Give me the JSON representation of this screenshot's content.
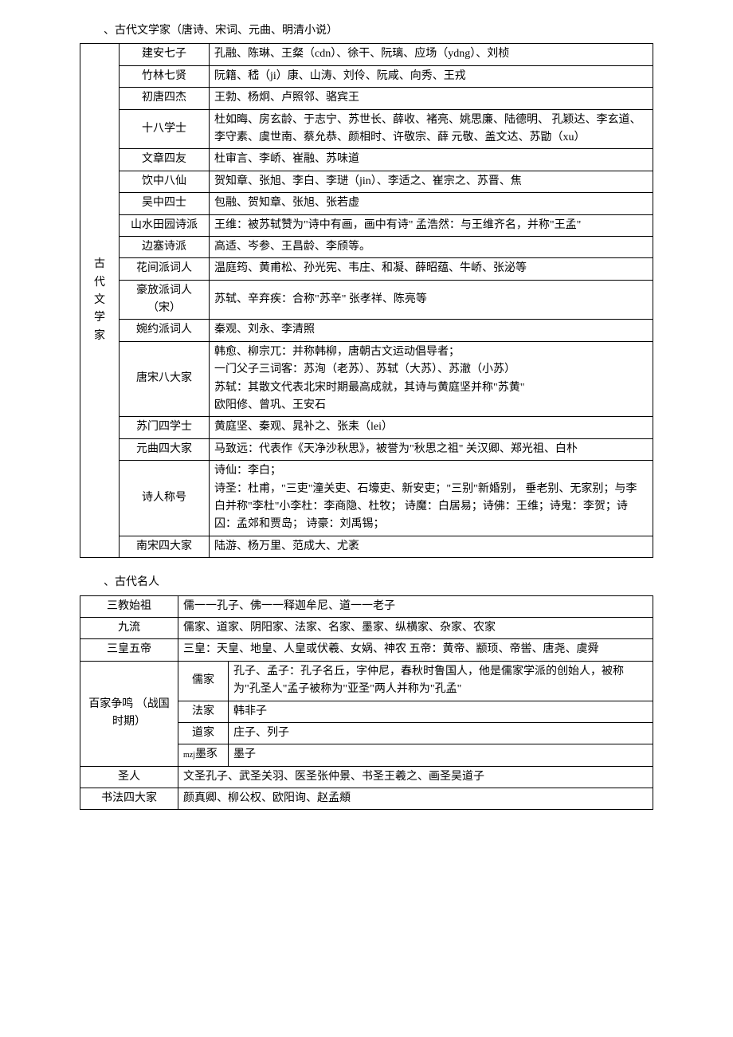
{
  "section1": {
    "title": "、古代文学家（唐诗、宋词、元曲、明清小说）",
    "rowspan_label": "古 代 文 学 家",
    "rows": [
      {
        "label": "建安七子",
        "content": "孔融、陈琳、王粲（cdn）、徐干、阮璃、应场（ydng）、刘桢"
      },
      {
        "label": "竹林七贤",
        "content": "阮籍、嵇（ji）康、山涛、刘伶、阮咸、向秀、王戎"
      },
      {
        "label": "初唐四杰",
        "content": "王勃、杨炯、卢照邻、骆宾王"
      },
      {
        "label": "十八学士",
        "content": "杜如晦、房玄龄、于志宁、苏世长、薛收、褚亮、姚思廉、陆德明、  孔颖达、李玄道、李守素、虞世南、蔡允恭、颜相时、许敬宗、薛 元敬、盖文达、苏勖（xu）"
      },
      {
        "label": "文章四友",
        "content": "杜审言、李峤、崔融、苏味道"
      },
      {
        "label": "饮中八仙",
        "content": "贺知章、张旭、李白、李琎（jin）、李适之、崔宗之、苏晋、焦"
      },
      {
        "label": "吴中四士",
        "content": "包融、贺知章、张旭、张若虚"
      },
      {
        "label": "山水田园诗派",
        "content": "王维：被苏轼赞为\"诗中有画，画中有诗\"  孟浩然：与王维齐名，并称\"王孟\""
      },
      {
        "label": "边塞诗派",
        "content": "高适、岑参、王昌龄、李颀等。"
      },
      {
        "label": "花间派词人",
        "content": "温庭筠、黄甫松、孙光宪、韦庄、和凝、薛昭蕴、牛峤、张泌等"
      },
      {
        "label": "豪放派词人（宋）",
        "content": "苏轼、辛弃疾：合称\"苏辛\"  张孝祥、陈亮等"
      },
      {
        "label": "婉约派词人",
        "content": "秦观、刘永、李清照"
      },
      {
        "label": "唐宋八大家",
        "content": "韩愈、柳宗兀：并称韩柳，唐朝古文运动倡导者；\n一门父子三词客：苏洵（老苏）、苏轼（大苏）、苏澈（小苏）\n苏轼：其散文代表北宋时期最高成就，其诗与黄庭坚并称\"苏黄\"\n欧阳修、曾巩、王安石"
      },
      {
        "label": "苏门四学士",
        "content": "黄庭坚、秦观、晁补之、张耒（lei）"
      },
      {
        "label": "元曲四大家",
        "content": "马致远：代表作《天净沙秋思》，被誉为\"秋思之祖\"  关汉卿、郑光祖、白朴"
      },
      {
        "label": "诗人称号",
        "content": "诗仙：李白；\n诗圣：杜甫，\"三吏\"潼关吏、石壕吏、新安吏；\"三别\"新婚别，  垂老别、无家别；与李白并称\"李杜\"小李杜：李商隐、杜牧；  诗魔：白居易；诗佛：王维；诗鬼：李贺；诗囚：孟郊和贾岛；  诗豪：刘禹锡；"
      },
      {
        "label": "南宋四大家",
        "content": "陆游、杨万里、范成大、尤袤"
      }
    ]
  },
  "section2": {
    "title": "、古代名人",
    "rows_simple": [
      {
        "label": "三教始祖",
        "content": "儒一一孔子、佛一一释迦牟尼、道一一老子"
      },
      {
        "label": "九流",
        "content": "儒家、道家、阴阳家、法家、名家、墨家、纵横家、杂家、农家"
      },
      {
        "label": "三皇五帝",
        "content": "三皇：天皇、地皇、人皇或伏羲、女娲、神农 五帝：黄帝、颛顼、帝喾、唐尧、虞舜"
      }
    ],
    "baijia": {
      "label": "百家争鸣  （战国时期）",
      "subrows": [
        {
          "sublabel": "儒家",
          "content": "孔子、孟子：孔子名丘，字仲尼，春秋时鲁国人，他是儒家学派的创始人，被称为\"孔圣人\"孟子被称为\"亚圣\"两人并称为\"孔孟\""
        },
        {
          "sublabel": "法家",
          "content": "韩非子"
        },
        {
          "sublabel": "道家",
          "content": "庄子、列子"
        },
        {
          "sublabel_prefix": "mzj",
          "sublabel": "墨豕",
          "content": "墨子"
        }
      ]
    },
    "rows_after": [
      {
        "label": "圣人",
        "content": "文圣孔子、武圣关羽、医圣张仲景、书圣王羲之、画圣吴道子"
      },
      {
        "label": "书法四大家",
        "content": "颜真卿、柳公权、欧阳询、赵孟頫"
      }
    ]
  }
}
